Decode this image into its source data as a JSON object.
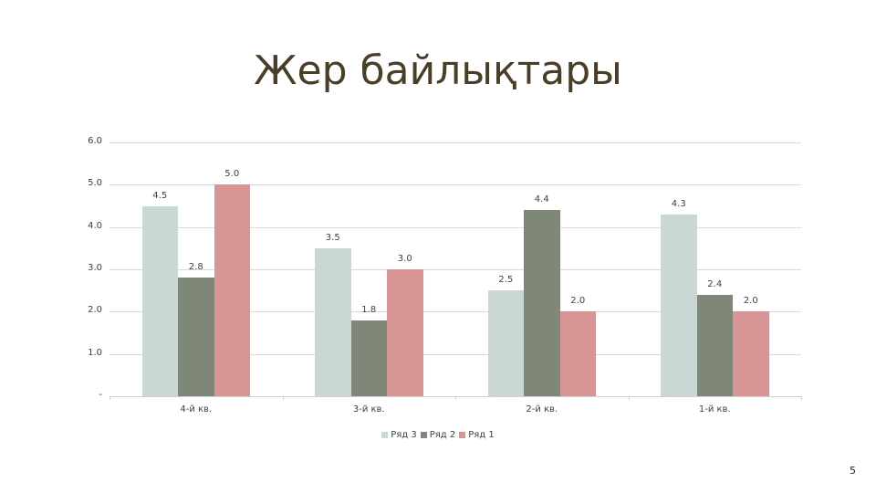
{
  "slide": {
    "title": "Жер байлықтары",
    "page_number": "5"
  },
  "chart_data": {
    "type": "bar",
    "title": "",
    "xlabel": "",
    "ylabel": "",
    "ylim": [
      0,
      6
    ],
    "yticks": [
      "-",
      "1.0",
      "2.0",
      "3.0",
      "4.0",
      "5.0",
      "6.0"
    ],
    "grid": true,
    "legend_position": "bottom",
    "categories": [
      "4-й кв.",
      "3-й кв.",
      "2-й кв.",
      "1-й кв."
    ],
    "series": [
      {
        "name": "Ряд 3",
        "color": "#c9d8d5",
        "values": [
          4.5,
          3.5,
          2.5,
          4.3
        ],
        "labels": [
          "4.5",
          "3.5",
          "2.5",
          "4.3"
        ]
      },
      {
        "name": "Ряд 2",
        "color": "#7f8778",
        "values": [
          2.8,
          1.8,
          4.4,
          2.4
        ],
        "labels": [
          "2.8",
          "1.8",
          "4.4",
          "2.4"
        ]
      },
      {
        "name": "Ряд 1",
        "color": "#d79595",
        "values": [
          5.0,
          3.0,
          2.0,
          2.0
        ],
        "labels": [
          "5.0",
          "3.0",
          "2.0",
          "2.0"
        ]
      }
    ]
  }
}
